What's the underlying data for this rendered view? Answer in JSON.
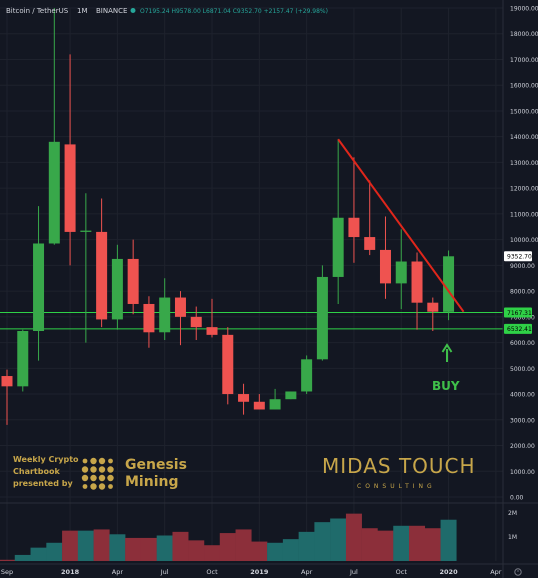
{
  "header": {
    "symbol": "Bitcoin / TetherUS",
    "interval": "1M",
    "exchange": "BINANCE",
    "ohlc": "O7195.24 H9578.00 L6871.04 C9352.70 +2157.47 (+29.98%)"
  },
  "colors": {
    "background": "#131722",
    "grid": "#1e222d",
    "up": "#26a69a",
    "up_candle": "#38a84a",
    "down": "#ef5350",
    "trendline": "#e0261b",
    "level_line": "#2fd147",
    "arrow": "#3fbf4a",
    "gold": "#c7a64a",
    "axis_text": "#d1d4dc",
    "volume_up": "#1f6b6b",
    "volume_down": "#8c2f3a"
  },
  "chart_data": {
    "type": "candlestick",
    "y_axis": {
      "range": [
        0,
        19000
      ],
      "ticks": [
        "0.00",
        "1000.00",
        "2000.00",
        "3000.00",
        "4000.00",
        "5000.00",
        "6000.00",
        "7000.00",
        "8000.00",
        "9000.00",
        "10000.00",
        "11000.00",
        "12000.00",
        "13000.00",
        "14000.00",
        "15000.00",
        "16000.00",
        "17000.00",
        "18000.00",
        "19000.00"
      ],
      "scale": "linear"
    },
    "x_axis": {
      "ticks": [
        "Sep",
        "2018",
        "Apr",
        "Jul",
        "Oct",
        "2019",
        "Apr",
        "Jul",
        "Oct",
        "2020",
        "Apr"
      ]
    },
    "candles": [
      {
        "date": "2017-09",
        "open": 4700,
        "high": 4950,
        "low": 2800,
        "close": 4300
      },
      {
        "date": "2017-10",
        "open": 4300,
        "high": 6500,
        "low": 4100,
        "close": 6450
      },
      {
        "date": "2017-11",
        "open": 6450,
        "high": 11300,
        "low": 5300,
        "close": 9850
      },
      {
        "date": "2017-12",
        "open": 9850,
        "high": 19000,
        "low": 9800,
        "close": 13800
      },
      {
        "date": "2018-01",
        "open": 13700,
        "high": 17200,
        "low": 9000,
        "close": 10300
      },
      {
        "date": "2018-02",
        "open": 10300,
        "high": 11800,
        "low": 6000,
        "close": 10350
      },
      {
        "date": "2018-03",
        "open": 10300,
        "high": 11600,
        "low": 6600,
        "close": 6900
      },
      {
        "date": "2018-04",
        "open": 6900,
        "high": 9800,
        "low": 6500,
        "close": 9250
      },
      {
        "date": "2018-05",
        "open": 9250,
        "high": 10000,
        "low": 7100,
        "close": 7500
      },
      {
        "date": "2018-06",
        "open": 7500,
        "high": 7800,
        "low": 5800,
        "close": 6400
      },
      {
        "date": "2018-07",
        "open": 6400,
        "high": 8500,
        "low": 6100,
        "close": 7750
      },
      {
        "date": "2018-08",
        "open": 7750,
        "high": 8000,
        "low": 5900,
        "close": 7000
      },
      {
        "date": "2018-09",
        "open": 7000,
        "high": 7400,
        "low": 6100,
        "close": 6600
      },
      {
        "date": "2018-10",
        "open": 6600,
        "high": 7700,
        "low": 6200,
        "close": 6300
      },
      {
        "date": "2018-11",
        "open": 6300,
        "high": 6600,
        "low": 3600,
        "close": 4000
      },
      {
        "date": "2018-12",
        "open": 4000,
        "high": 4400,
        "low": 3200,
        "close": 3700
      },
      {
        "date": "2019-01",
        "open": 3700,
        "high": 4000,
        "low": 3400,
        "close": 3400
      },
      {
        "date": "2019-02",
        "open": 3400,
        "high": 4200,
        "low": 3400,
        "close": 3800
      },
      {
        "date": "2019-03",
        "open": 3800,
        "high": 4100,
        "low": 3800,
        "close": 4100
      },
      {
        "date": "2019-04",
        "open": 4100,
        "high": 5500,
        "low": 4000,
        "close": 5350
      },
      {
        "date": "2019-05",
        "open": 5350,
        "high": 9000,
        "low": 5300,
        "close": 8550
      },
      {
        "date": "2019-06",
        "open": 8550,
        "high": 13900,
        "low": 7500,
        "close": 10850
      },
      {
        "date": "2019-07",
        "open": 10850,
        "high": 13200,
        "low": 9100,
        "close": 10100
      },
      {
        "date": "2019-08",
        "open": 10100,
        "high": 12300,
        "low": 9400,
        "close": 9600
      },
      {
        "date": "2019-09",
        "open": 9600,
        "high": 10900,
        "low": 7700,
        "close": 8300
      },
      {
        "date": "2019-10",
        "open": 8300,
        "high": 10400,
        "low": 7300,
        "close": 9150
      },
      {
        "date": "2019-11",
        "open": 9150,
        "high": 9500,
        "low": 6500,
        "close": 7550
      },
      {
        "date": "2019-12",
        "open": 7550,
        "high": 7750,
        "low": 6450,
        "close": 7200
      },
      {
        "date": "2020-01",
        "open": 7195.24,
        "high": 9578,
        "low": 6871.04,
        "close": 9352.7
      }
    ],
    "volume": {
      "axis_ticks": [
        "2M",
        "1M"
      ],
      "values": [
        0.05,
        0.25,
        0.55,
        0.75,
        1.25,
        1.25,
        1.3,
        1.1,
        0.95,
        0.95,
        1.05,
        1.2,
        0.85,
        0.65,
        1.15,
        1.3,
        0.8,
        0.75,
        0.9,
        1.2,
        1.6,
        1.75,
        1.95,
        1.35,
        1.25,
        1.45,
        1.45,
        1.35,
        1.7
      ]
    },
    "price_labels": [
      {
        "text": "9352.70",
        "value": 9352.7
      },
      {
        "text": "7167.31",
        "value": 7167.31
      },
      {
        "text": "6532.41",
        "value": 6532.41
      }
    ],
    "horizontal_levels": [
      7167.31,
      6532.41
    ],
    "trendline": {
      "from": {
        "date": "2019-06",
        "value": 13900
      },
      "to": {
        "date": "2020-01",
        "value": 7200
      }
    },
    "annotation": {
      "label": "BUY"
    }
  },
  "branding": {
    "genesis_caption": [
      "Weekly Crypto",
      "Chartbook",
      "presented by"
    ],
    "genesis_name": [
      "Genesis",
      "Mining"
    ],
    "midas_name": "MIDAS TOUCH",
    "midas_sub": "CONSULTING"
  },
  "footer": {
    "timezone_icon": "clock-settings-icon"
  }
}
